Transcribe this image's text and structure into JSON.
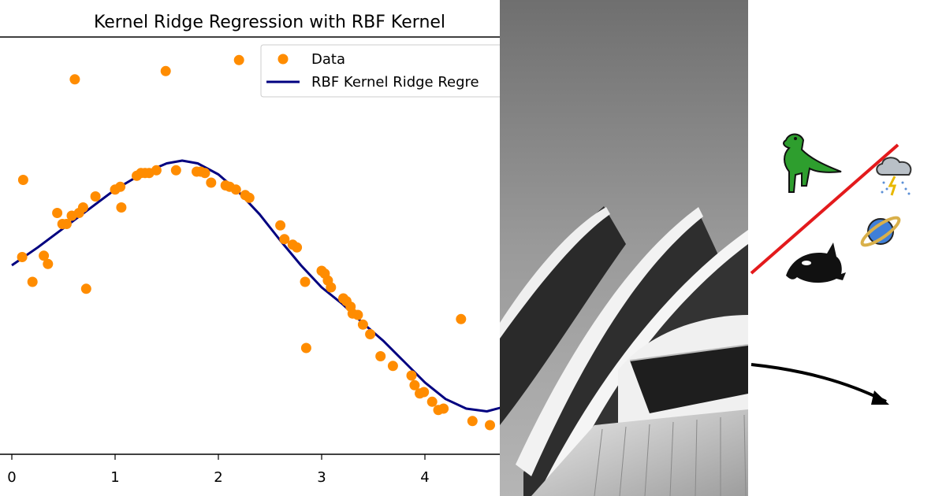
{
  "chart_data": {
    "type": "scatter",
    "title": "Kernel Ridge Regression with RBF Kernel",
    "xlabel": "",
    "ylabel": "",
    "xlim": [
      -0.12,
      4.7
    ],
    "ylim": [
      -1.7,
      1.3
    ],
    "x_ticks": [
      "0",
      "1",
      "2",
      "3",
      "4"
    ],
    "legend": {
      "position": "top-right",
      "entries": [
        "Data",
        "RBF Kernel Ridge Regre"
      ]
    },
    "grid": false,
    "series": [
      {
        "name": "Data",
        "kind": "scatter",
        "color": "#ff8c00",
        "x": [
          0.1,
          0.11,
          0.2,
          0.31,
          0.35,
          0.44,
          0.49,
          0.53,
          0.58,
          0.61,
          0.65,
          0.69,
          0.72,
          0.81,
          1.0,
          1.05,
          1.06,
          1.21,
          1.25,
          1.29,
          1.33,
          1.4,
          1.49,
          1.59,
          1.79,
          1.83,
          1.87,
          1.93,
          2.07,
          2.11,
          2.17,
          2.2,
          2.26,
          2.3,
          2.6,
          2.64,
          2.72,
          2.76,
          2.84,
          2.85,
          3.0,
          3.03,
          3.06,
          3.09,
          3.21,
          3.24,
          3.28,
          3.3,
          3.35,
          3.4,
          3.47,
          3.57,
          3.69,
          3.87,
          3.9,
          3.95,
          3.99,
          4.07,
          4.13,
          4.18,
          4.35,
          4.46,
          4.63
        ],
        "y": [
          -0.02,
          0.54,
          -0.2,
          -0.01,
          -0.07,
          0.3,
          0.22,
          0.22,
          0.28,
          1.27,
          0.3,
          0.34,
          -0.25,
          0.42,
          0.47,
          0.49,
          0.34,
          0.57,
          0.59,
          0.59,
          0.59,
          0.61,
          1.33,
          0.61,
          0.6,
          0.6,
          0.59,
          0.52,
          0.5,
          0.49,
          0.47,
          1.41,
          0.43,
          0.41,
          0.21,
          0.11,
          0.07,
          0.05,
          -0.2,
          -0.68,
          -0.12,
          -0.14,
          -0.19,
          -0.24,
          -0.32,
          -0.34,
          -0.38,
          -0.43,
          -0.44,
          -0.51,
          -0.58,
          -0.74,
          -0.81,
          -0.88,
          -0.95,
          -1.01,
          -1.0,
          -1.07,
          -1.13,
          -1.12,
          -0.47,
          -1.21,
          -1.24
        ]
      },
      {
        "name": "RBF Kernel Ridge Regre",
        "kind": "line",
        "color": "#000080",
        "x": [
          0.0,
          0.25,
          0.5,
          0.75,
          1.0,
          1.25,
          1.5,
          1.65,
          1.8,
          2.0,
          2.2,
          2.4,
          2.6,
          2.8,
          3.0,
          3.2,
          3.4,
          3.6,
          3.8,
          4.0,
          4.2,
          4.4,
          4.6,
          4.8
        ],
        "y": [
          -0.08,
          0.05,
          0.19,
          0.33,
          0.47,
          0.58,
          0.66,
          0.68,
          0.66,
          0.58,
          0.45,
          0.29,
          0.1,
          -0.08,
          -0.24,
          -0.36,
          -0.5,
          -0.63,
          -0.78,
          -0.93,
          -1.05,
          -1.12,
          -1.14,
          -1.1
        ]
      }
    ]
  },
  "colors": {
    "data_points": "#ff8c00",
    "fit_line": "#000080",
    "arrow_red": "#e31a1c",
    "arrow_black": "#000000"
  },
  "photo": {
    "subject": "opera-house-shells-bw"
  },
  "stickers": {
    "icons": [
      "dinosaur-icon",
      "storm-cloud-icon",
      "planet-icon",
      "orca-icon"
    ],
    "arrows": [
      "red-line-arrow",
      "black-curved-arrow"
    ]
  }
}
